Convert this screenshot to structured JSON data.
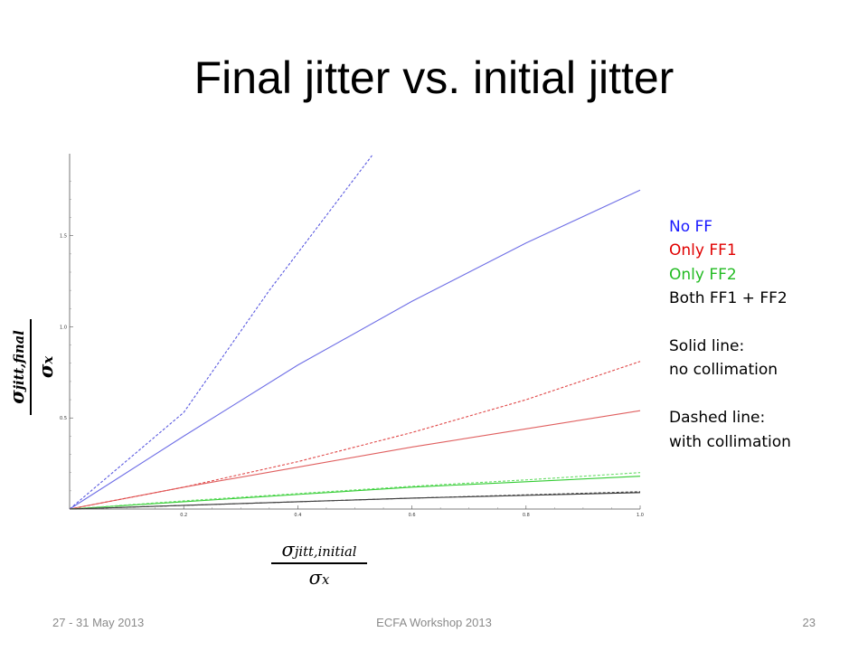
{
  "slide": {
    "title": "Final jitter vs. initial jitter",
    "footer_left": "27 - 31 May 2013",
    "footer_center": "ECFA Workshop 2013",
    "footer_right": "23"
  },
  "legend": {
    "entries": [
      {
        "label": "No FF",
        "color": "#1a1aff"
      },
      {
        "label": "Only FF1",
        "color": "#e00000"
      },
      {
        "label": "Only FF2",
        "color": "#22bb22"
      },
      {
        "label": "Both FF1 + FF2",
        "color": "#000000"
      }
    ],
    "solid_heading": "Solid line:",
    "solid_text": "no collimation",
    "dashed_heading": "Dashed line:",
    "dashed_text": "with collimation"
  },
  "axis_labels": {
    "x_num_main": "σ",
    "x_num_sub": "jitt,initial",
    "x_den_main": "σ",
    "x_den_sub": "x",
    "y_num_main": "σ",
    "y_num_sub": "jitt,final",
    "y_den_main": "σ",
    "y_den_sub": "x"
  },
  "chart_data": {
    "type": "line",
    "title": "",
    "xlabel": "σ_jitt,initial / σ_x",
    "ylabel": "σ_jitt,final / σ_x",
    "xlim": [
      0,
      1.0
    ],
    "ylim": [
      0,
      1.95
    ],
    "x_ticks": [
      0.2,
      0.4,
      0.6,
      0.8,
      1.0
    ],
    "y_ticks": [
      0.5,
      1.0,
      1.5
    ],
    "x_tick_labels": [
      "0.2",
      "0.4",
      "0.6",
      "0.8",
      "1.0"
    ],
    "y_tick_labels": [
      "0.5",
      "1.0",
      "1.5"
    ],
    "grid": false,
    "legend_position": "right",
    "series": [
      {
        "name": "No FF",
        "style": "solid",
        "color": "#6f6fe6",
        "x": [
          0,
          0.2,
          0.4,
          0.6,
          0.8,
          1.0
        ],
        "y": [
          0,
          0.4,
          0.79,
          1.14,
          1.46,
          1.75
        ]
      },
      {
        "name": "No FF",
        "style": "dashed",
        "color": "#5a5ae0",
        "x": [
          0,
          0.2,
          0.35,
          0.53
        ],
        "y": [
          0,
          0.53,
          1.2,
          1.94
        ]
      },
      {
        "name": "Only FF1",
        "style": "solid",
        "color": "#e06060",
        "x": [
          0,
          0.2,
          0.4,
          0.6,
          0.8,
          1.0
        ],
        "y": [
          0,
          0.12,
          0.23,
          0.34,
          0.44,
          0.54
        ]
      },
      {
        "name": "Only FF1",
        "style": "dashed",
        "color": "#e04848",
        "x": [
          0,
          0.2,
          0.4,
          0.6,
          0.8,
          1.0
        ],
        "y": [
          0,
          0.12,
          0.26,
          0.42,
          0.6,
          0.81
        ]
      },
      {
        "name": "Only FF2",
        "style": "solid",
        "color": "#33cc33",
        "x": [
          0,
          0.2,
          0.4,
          0.6,
          0.8,
          1.0
        ],
        "y": [
          0,
          0.04,
          0.08,
          0.12,
          0.15,
          0.18
        ]
      },
      {
        "name": "Only FF2",
        "style": "dashed",
        "color": "#66dd66",
        "x": [
          0,
          0.2,
          0.4,
          0.6,
          0.8,
          1.0
        ],
        "y": [
          0,
          0.045,
          0.085,
          0.125,
          0.16,
          0.2
        ]
      },
      {
        "name": "Both FF1 + FF2",
        "style": "solid",
        "color": "#333333",
        "x": [
          0,
          0.2,
          0.4,
          0.6,
          0.8,
          1.0
        ],
        "y": [
          0,
          0.02,
          0.04,
          0.06,
          0.075,
          0.09
        ]
      },
      {
        "name": "Both FF1 + FF2",
        "style": "dashed",
        "color": "#444444",
        "x": [
          0,
          0.2,
          0.4,
          0.6,
          0.8,
          1.0
        ],
        "y": [
          0,
          0.02,
          0.04,
          0.06,
          0.078,
          0.095
        ]
      }
    ]
  }
}
